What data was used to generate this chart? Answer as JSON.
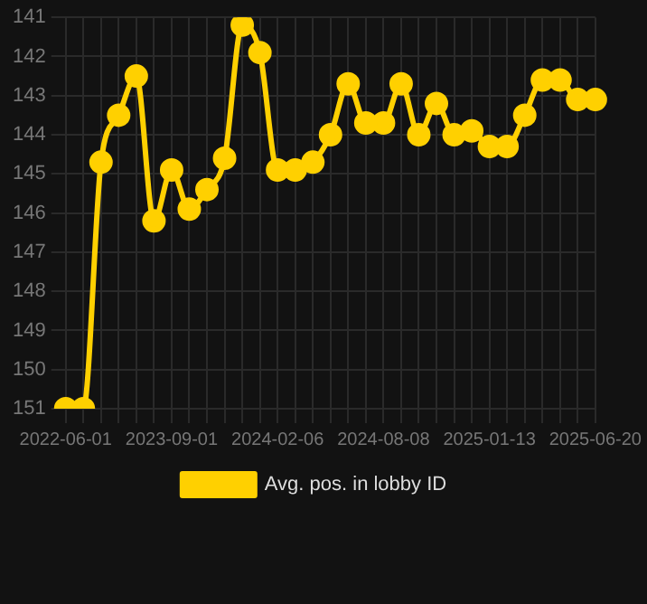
{
  "chart_data": {
    "type": "line",
    "categories": [
      "2022-06-01",
      null,
      null,
      null,
      null,
      null,
      "2023-09-01",
      null,
      null,
      null,
      null,
      null,
      "2024-02-06",
      null,
      null,
      null,
      null,
      null,
      "2024-08-08",
      null,
      null,
      null,
      null,
      null,
      "2025-01-13",
      null,
      null,
      null,
      null,
      null,
      "2025-06-20"
    ],
    "series": [
      {
        "name": "Avg. pos. in lobby ID",
        "color": "#ffd000",
        "values": [
          151,
          151,
          144.7,
          143.5,
          142.5,
          146.2,
          144.9,
          145.9,
          145.4,
          144.6,
          141.2,
          141.9,
          144.9,
          144.9,
          144.7,
          144.0,
          142.7,
          143.7,
          143.7,
          142.7,
          144.0,
          143.2,
          144.0,
          143.9,
          144.3,
          144.3,
          143.5,
          142.6,
          142.6,
          143.1,
          143.1
        ]
      }
    ],
    "ylim": [
      151,
      141
    ],
    "yticks": [
      141,
      142,
      143,
      144,
      145,
      146,
      147,
      148,
      149,
      150,
      151
    ],
    "grid": true,
    "legend": "bottom",
    "marker": "circle",
    "line_style": "solid"
  }
}
